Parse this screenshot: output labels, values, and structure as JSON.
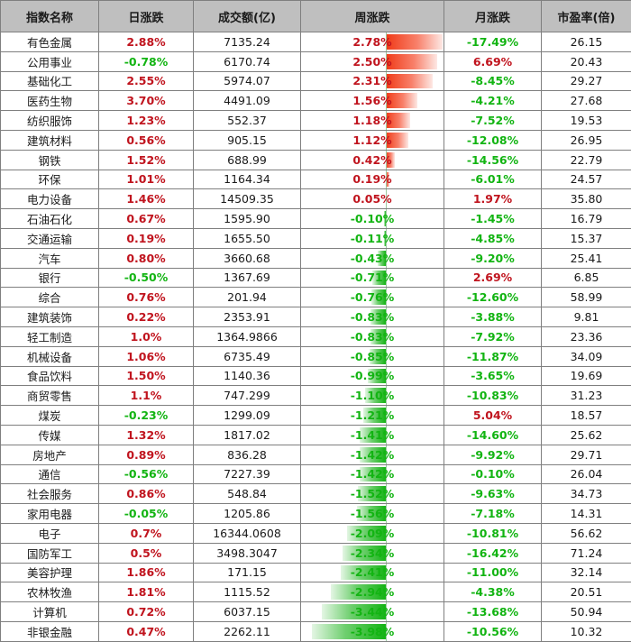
{
  "table": {
    "headers": [
      "指数名称",
      "日涨跌",
      "成交额(亿)",
      "周涨跌",
      "月涨跌",
      "市盈率(倍)"
    ],
    "colors": {
      "up": "#c0141e",
      "down": "#12b412",
      "bar_up": "#f03a17",
      "bar_down": "#13b313",
      "header_bg": "#bfbfbf"
    },
    "rows": [
      {
        "name": "有色金属",
        "day": "2.88%",
        "turnover": "7135.24",
        "week": "2.78%",
        "week_val": 2.78,
        "month": "-17.49%",
        "pe": "26.15"
      },
      {
        "name": "公用事业",
        "day": "-0.78%",
        "turnover": "6170.74",
        "week": "2.50%",
        "week_val": 2.5,
        "month": "6.69%",
        "pe": "20.43"
      },
      {
        "name": "基础化工",
        "day": "2.55%",
        "turnover": "5974.07",
        "week": "2.31%",
        "week_val": 2.31,
        "month": "-8.45%",
        "pe": "29.27"
      },
      {
        "name": "医药生物",
        "day": "3.70%",
        "turnover": "4491.09",
        "week": "1.56%",
        "week_val": 1.56,
        "month": "-4.21%",
        "pe": "27.68"
      },
      {
        "name": "纺织服饰",
        "day": "1.23%",
        "turnover": "552.37",
        "week": "1.18%",
        "week_val": 1.18,
        "month": "-7.52%",
        "pe": "19.53"
      },
      {
        "name": "建筑材料",
        "day": "0.56%",
        "turnover": "905.15",
        "week": "1.12%",
        "week_val": 1.12,
        "month": "-12.08%",
        "pe": "26.95"
      },
      {
        "name": "钢铁",
        "day": "1.52%",
        "turnover": "688.99",
        "week": "0.42%",
        "week_val": 0.42,
        "month": "-14.56%",
        "pe": "22.79"
      },
      {
        "name": "环保",
        "day": "1.01%",
        "turnover": "1164.34",
        "week": "0.19%",
        "week_val": 0.19,
        "month": "-6.01%",
        "pe": "24.57"
      },
      {
        "name": "电力设备",
        "day": "1.46%",
        "turnover": "14509.35",
        "week": "0.05%",
        "week_val": 0.05,
        "month": "1.97%",
        "pe": "35.80"
      },
      {
        "name": "石油石化",
        "day": "0.67%",
        "turnover": "1595.90",
        "week": "-0.10%",
        "week_val": -0.1,
        "month": "-1.45%",
        "pe": "16.79"
      },
      {
        "name": "交通运输",
        "day": "0.19%",
        "turnover": "1655.50",
        "week": "-0.11%",
        "week_val": -0.11,
        "month": "-4.85%",
        "pe": "15.37"
      },
      {
        "name": "汽车",
        "day": "0.80%",
        "turnover": "3660.68",
        "week": "-0.43%",
        "week_val": -0.43,
        "month": "-9.20%",
        "pe": "25.41"
      },
      {
        "name": "银行",
        "day": "-0.50%",
        "turnover": "1367.69",
        "week": "-0.71%",
        "week_val": -0.71,
        "month": "2.69%",
        "pe": "6.85"
      },
      {
        "name": "综合",
        "day": "0.76%",
        "turnover": "201.94",
        "week": "-0.76%",
        "week_val": -0.76,
        "month": "-12.60%",
        "pe": "58.99"
      },
      {
        "name": "建筑装饰",
        "day": "0.22%",
        "turnover": "2353.91",
        "week": "-0.83%",
        "week_val": -0.83,
        "month": "-3.88%",
        "pe": "9.81"
      },
      {
        "name": "轻工制造",
        "day": "1.0%",
        "turnover": "1364.9866",
        "week": "-0.83%",
        "week_val": -0.83,
        "month": "-7.92%",
        "pe": "23.36"
      },
      {
        "name": "机械设备",
        "day": "1.06%",
        "turnover": "6735.49",
        "week": "-0.85%",
        "week_val": -0.85,
        "month": "-11.87%",
        "pe": "34.09"
      },
      {
        "name": "食品饮料",
        "day": "1.50%",
        "turnover": "1140.36",
        "week": "-0.99%",
        "week_val": -0.99,
        "month": "-3.65%",
        "pe": "19.69"
      },
      {
        "name": "商贸零售",
        "day": "1.1%",
        "turnover": "747.299",
        "week": "-1.10%",
        "week_val": -1.1,
        "month": "-10.83%",
        "pe": "31.23"
      },
      {
        "name": "煤炭",
        "day": "-0.23%",
        "turnover": "1299.09",
        "week": "-1.21%",
        "week_val": -1.21,
        "month": "5.04%",
        "pe": "18.57"
      },
      {
        "name": "传媒",
        "day": "1.32%",
        "turnover": "1817.02",
        "week": "-1.41%",
        "week_val": -1.41,
        "month": "-14.60%",
        "pe": "25.62"
      },
      {
        "name": "房地产",
        "day": "0.89%",
        "turnover": "836.28",
        "week": "-1.42%",
        "week_val": -1.42,
        "month": "-9.92%",
        "pe": "29.71"
      },
      {
        "name": "通信",
        "day": "-0.56%",
        "turnover": "7227.39",
        "week": "-1.42%",
        "week_val": -1.42,
        "month": "-0.10%",
        "pe": "26.04"
      },
      {
        "name": "社会服务",
        "day": "0.86%",
        "turnover": "548.84",
        "week": "-1.52%",
        "week_val": -1.52,
        "month": "-9.63%",
        "pe": "34.73"
      },
      {
        "name": "家用电器",
        "day": "-0.05%",
        "turnover": "1205.86",
        "week": "-1.56%",
        "week_val": -1.56,
        "month": "-7.18%",
        "pe": "14.31"
      },
      {
        "name": "电子",
        "day": "0.7%",
        "turnover": "16344.0608",
        "week": "-2.09%",
        "week_val": -2.09,
        "month": "-10.81%",
        "pe": "56.62"
      },
      {
        "name": "国防军工",
        "day": "0.5%",
        "turnover": "3498.3047",
        "week": "-2.34%",
        "week_val": -2.34,
        "month": "-16.42%",
        "pe": "71.24"
      },
      {
        "name": "美容护理",
        "day": "1.86%",
        "turnover": "171.15",
        "week": "-2.41%",
        "week_val": -2.41,
        "month": "-11.00%",
        "pe": "32.14"
      },
      {
        "name": "农林牧渔",
        "day": "1.81%",
        "turnover": "1115.52",
        "week": "-2.94%",
        "week_val": -2.94,
        "month": "-4.38%",
        "pe": "20.51"
      },
      {
        "name": "计算机",
        "day": "0.72%",
        "turnover": "6037.15",
        "week": "-3.44%",
        "week_val": -3.44,
        "month": "-13.68%",
        "pe": "50.94"
      },
      {
        "name": "非银金融",
        "day": "0.47%",
        "turnover": "2262.11",
        "week": "-3.98%",
        "week_val": -3.98,
        "month": "-10.56%",
        "pe": "10.32"
      }
    ]
  }
}
